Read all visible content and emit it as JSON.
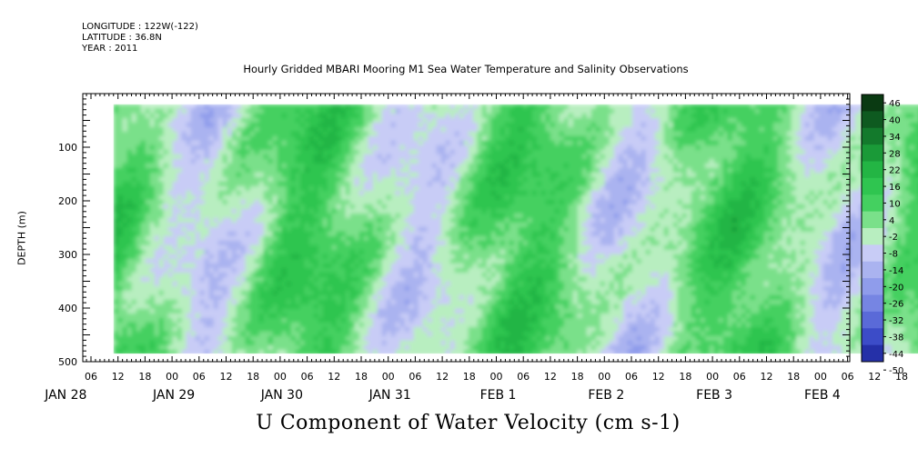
{
  "header": {
    "lines": [
      "LONGITUDE : 122W(-122)",
      "LATITUDE : 36.8N",
      "YEAR : 2011"
    ]
  },
  "chart_data": {
    "type": "heatmap",
    "title": "Hourly Gridded MBARI Mooring M1 Sea Water Temperature and Salinity Observations",
    "colorbar_title": "U Component of Water Velocity (cm s-1)",
    "ylabel": "DEPTH (m)",
    "xlabel": "",
    "ylim": [
      500,
      0
    ],
    "y_ticks": [
      100,
      200,
      300,
      400,
      500
    ],
    "x_hour_labels": [
      "06",
      "12",
      "18",
      "00",
      "06",
      "12",
      "18",
      "00",
      "06",
      "12",
      "18",
      "00",
      "06",
      "12",
      "18",
      "00",
      "06",
      "12",
      "18",
      "00",
      "06",
      "12",
      "18",
      "00",
      "06",
      "12",
      "18",
      "00",
      "06",
      "12",
      "18",
      "00"
    ],
    "x_day_labels": [
      "JAN 28",
      "JAN 29",
      "JAN 30",
      "JAN 31",
      "FEB  1",
      "FEB  2",
      "FEB  3",
      "FEB  4"
    ],
    "data_extent": {
      "time_start_hour": 11,
      "time_end_hour": 195,
      "depth_min": 20,
      "depth_max": 485
    },
    "colorbar_levels": [
      "46",
      "40",
      "34",
      "28",
      "22",
      "16",
      "10",
      "4",
      "-2",
      "-8",
      "-14",
      "-20",
      "-26",
      "-32",
      "-38",
      "-44",
      "-50"
    ],
    "colors": {
      "positive": "#33cc55",
      "negative": "#9aa8ee",
      "strong_negative": "#1a1a8c",
      "strong_positive": "#0a4a1a"
    },
    "values_range": [
      -50,
      46
    ],
    "note_pattern": "alternating bands of positive (green) and negative (blue) velocity over time and depth"
  }
}
